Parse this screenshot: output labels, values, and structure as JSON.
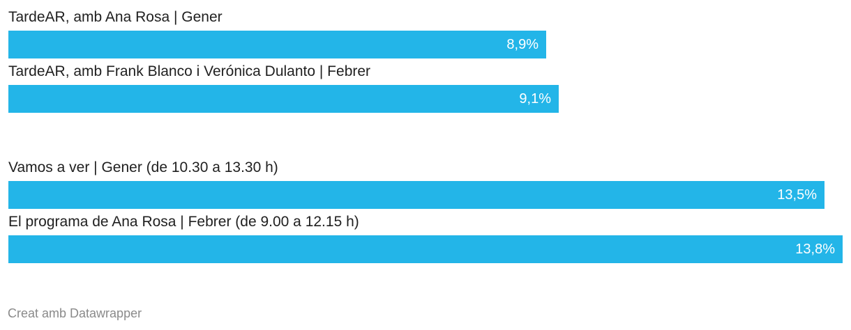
{
  "chart_data": {
    "type": "bar",
    "orientation": "horizontal",
    "categories": [
      "TardeAR, amb Ana Rosa | Gener",
      "TardeAR, amb Frank Blanco i Verónica Dulanto | Febrer",
      "Vamos a ver | Gener (de 10.30 a 13.30 h)",
      "El programa de Ana Rosa | Febrer (de 9.00 a 12.15 h)"
    ],
    "values": [
      8.9,
      9.1,
      13.5,
      13.8
    ],
    "value_labels": [
      "8,9%",
      "9,1%",
      "13,5%",
      "13,8%"
    ],
    "groups": [
      [
        0,
        1
      ],
      [
        2,
        3
      ]
    ],
    "xlim": [
      0,
      13.8
    ],
    "grid": false,
    "bar_color": "#23b5e8"
  },
  "footer": {
    "credit": "Creat amb Datawrapper"
  }
}
